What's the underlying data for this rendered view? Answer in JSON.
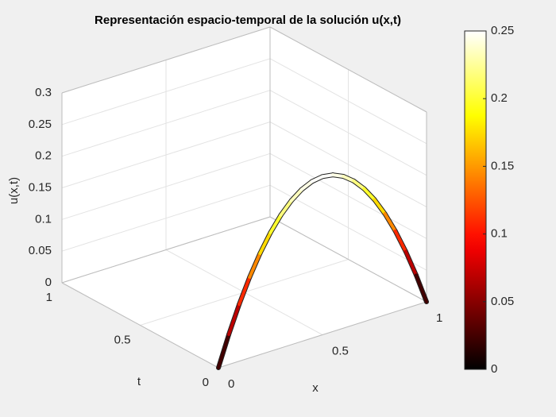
{
  "chart_data": {
    "type": "surface3d",
    "title": "Representación espacio-temporal de la solución u(x,t)",
    "xlabel": "x",
    "ylabel": "t",
    "zlabel": "u(x,t)",
    "t": 0,
    "x": [
      0,
      0.05,
      0.1,
      0.15,
      0.2,
      0.25,
      0.3,
      0.35,
      0.4,
      0.45,
      0.5,
      0.55,
      0.6,
      0.65,
      0.7,
      0.75,
      0.8,
      0.85,
      0.9,
      0.95,
      1
    ],
    "values": [
      0,
      0.0475,
      0.09,
      0.1275,
      0.16,
      0.1875,
      0.21,
      0.2275,
      0.24,
      0.2475,
      0.25,
      0.2475,
      0.24,
      0.2275,
      0.21,
      0.1875,
      0.16,
      0.1275,
      0.09,
      0.0475,
      0
    ],
    "xlim": [
      0,
      1
    ],
    "xticks": [
      0,
      0.5,
      1
    ],
    "ylim": [
      0,
      1
    ],
    "yticks": [
      0,
      0.5,
      1
    ],
    "zlim": [
      0,
      0.3
    ],
    "zticks": [
      0,
      0.05,
      0.1,
      0.15,
      0.2,
      0.25,
      0.3
    ],
    "grid": true,
    "colormap": "hot",
    "clim": [
      0,
      0.25
    ],
    "cticks": [
      0,
      0.05,
      0.1,
      0.15,
      0.2,
      0.25
    ]
  }
}
